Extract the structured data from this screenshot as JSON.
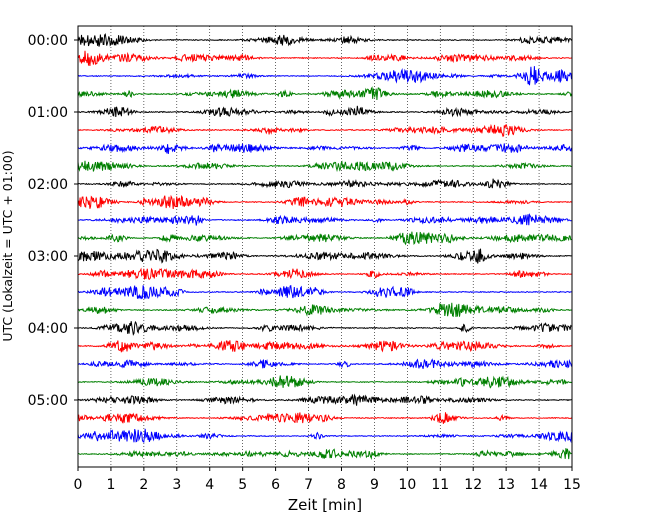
{
  "chart_data": {
    "type": "line",
    "title": "",
    "xlabel": "Zeit  [min]",
    "ylabel": "UTC (Lokalzeit = UTC + 01:00)",
    "xlim": [
      0,
      15
    ],
    "x_ticks": [
      "0",
      "1",
      "2",
      "3",
      "4",
      "5",
      "6",
      "7",
      "8",
      "9",
      "10",
      "11",
      "12",
      "13",
      "14",
      "15"
    ],
    "y_tick_labels": [
      "00:00",
      "01:00",
      "02:00",
      "03:00",
      "04:00",
      "05:00"
    ],
    "trace_start_times": [
      "00:00",
      "00:15",
      "00:30",
      "00:45",
      "01:00",
      "01:15",
      "01:30",
      "01:45",
      "02:00",
      "02:15",
      "02:30",
      "02:45",
      "03:00",
      "03:15",
      "03:30",
      "03:45",
      "04:00",
      "04:15",
      "04:30",
      "04:45",
      "05:00",
      "05:15",
      "05:30",
      "05:45"
    ],
    "trace_color_cycle": [
      "#000000",
      "#ff0000",
      "#0000ff",
      "#008000"
    ],
    "grid": "vertical dotted lines at each minute",
    "legend": "none"
  }
}
